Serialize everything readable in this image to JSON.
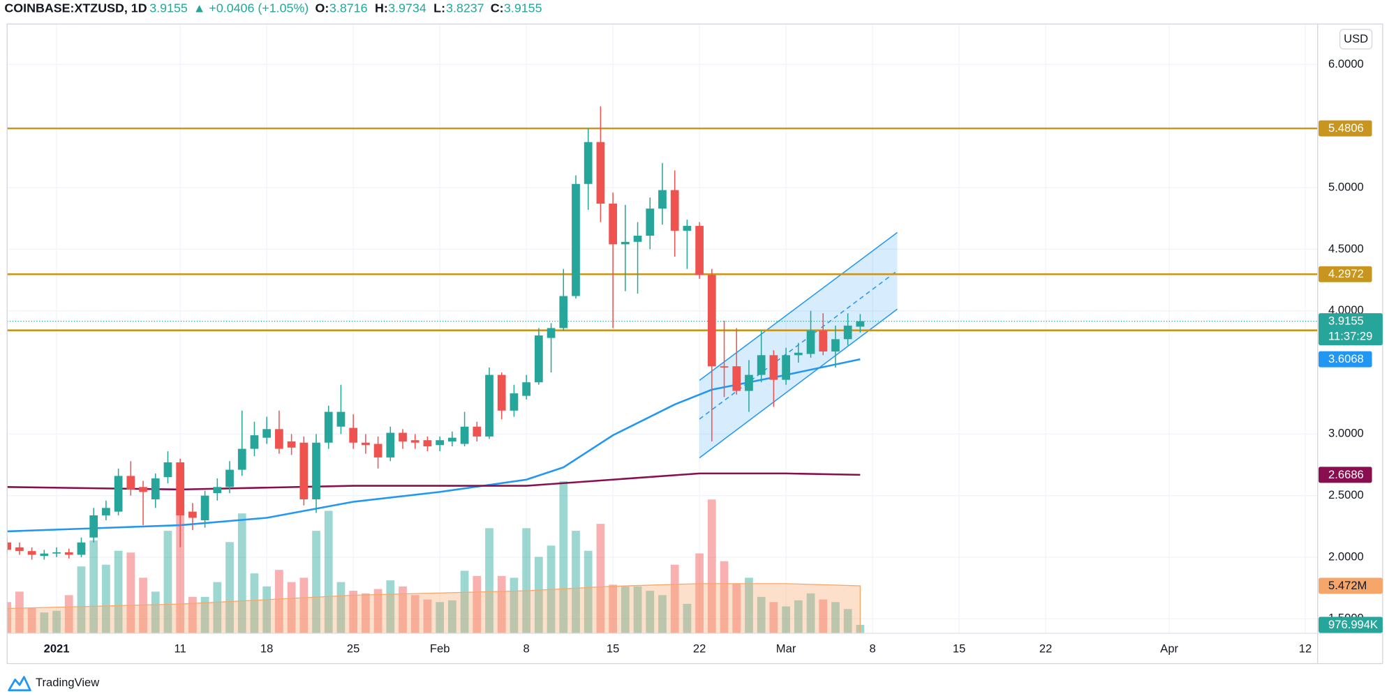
{
  "chart_data": {
    "type": "candlestick",
    "title": "COINBASE:XTZUSD, 1D",
    "change": "▲ +0.0406 (+1.05%)",
    "ohlc_labels": {
      "open": "O:",
      "high": "H:",
      "low": "L:",
      "close": "C:"
    },
    "currency": "USD",
    "countdown": "11:37:29",
    "brand": "TradingView",
    "up_color": "#26a69a",
    "down_color": "#ef5350",
    "grid": true,
    "x": [
      "2020-12-28",
      "2020-12-29",
      "2020-12-30",
      "2020-12-31",
      "2021-01-01",
      "2021-01-02",
      "2021-01-03",
      "2021-01-04",
      "2021-01-05",
      "2021-01-06",
      "2021-01-07",
      "2021-01-08",
      "2021-01-09",
      "2021-01-10",
      "2021-01-11",
      "2021-01-12",
      "2021-01-13",
      "2021-01-14",
      "2021-01-15",
      "2021-01-16",
      "2021-01-17",
      "2021-01-18",
      "2021-01-19",
      "2021-01-20",
      "2021-01-21",
      "2021-01-22",
      "2021-01-23",
      "2021-01-24",
      "2021-01-25",
      "2021-01-26",
      "2021-01-27",
      "2021-01-28",
      "2021-01-29",
      "2021-01-30",
      "2021-01-31",
      "2021-02-01",
      "2021-02-02",
      "2021-02-03",
      "2021-02-04",
      "2021-02-05",
      "2021-02-06",
      "2021-02-07",
      "2021-02-08",
      "2021-02-09",
      "2021-02-10",
      "2021-02-11",
      "2021-02-12",
      "2021-02-13",
      "2021-02-14",
      "2021-02-15",
      "2021-02-16",
      "2021-02-17",
      "2021-02-18",
      "2021-02-19",
      "2021-02-20",
      "2021-02-21",
      "2021-02-22",
      "2021-02-23",
      "2021-02-24",
      "2021-02-25",
      "2021-02-26",
      "2021-02-27",
      "2021-02-28",
      "2021-03-01",
      "2021-03-02",
      "2021-03-03",
      "2021-03-04",
      "2021-03-05",
      "2021-03-06",
      "2021-03-07"
    ],
    "open": [
      2.12,
      2.08,
      2.05,
      2.01,
      2.03,
      2.04,
      2.02,
      2.16,
      2.34,
      2.37,
      2.66,
      2.57,
      2.47,
      2.65,
      2.77,
      2.37,
      2.3,
      2.52,
      2.57,
      2.71,
      2.88,
      2.97,
      3.04,
      2.94,
      2.93,
      2.47,
      2.93,
      3.06,
      3.05,
      2.93,
      2.92,
      2.81,
      3.01,
      2.95,
      2.95,
      2.91,
      2.94,
      2.92,
      3.06,
      2.98,
      3.48,
      3.19,
      3.31,
      3.42,
      3.78,
      3.86,
      4.12,
      5.03,
      5.37,
      4.87,
      4.54,
      4.56,
      4.61,
      4.83,
      4.98,
      4.65,
      4.69,
      4.29,
      3.55,
      3.55,
      3.35,
      3.48,
      3.64,
      3.44,
      3.64,
      3.65,
      3.84,
      3.67,
      3.77,
      3.8716
    ],
    "high": [
      2.16,
      2.12,
      2.08,
      2.06,
      2.08,
      2.07,
      2.16,
      2.4,
      2.46,
      2.72,
      2.78,
      2.62,
      2.68,
      2.86,
      2.8,
      2.44,
      2.54,
      2.64,
      2.78,
      3.19,
      3.1,
      3.14,
      3.19,
      3.0,
      2.98,
      3.0,
      3.23,
      3.4,
      3.16,
      3.0,
      2.98,
      3.06,
      3.04,
      3.0,
      2.98,
      2.98,
      3.02,
      3.18,
      3.1,
      3.54,
      3.5,
      3.4,
      3.48,
      3.86,
      3.9,
      4.34,
      5.1,
      5.48,
      5.66,
      4.96,
      4.86,
      4.72,
      4.92,
      5.2,
      5.14,
      4.74,
      4.72,
      4.34,
      3.92,
      3.86,
      3.6,
      3.84,
      3.68,
      3.7,
      3.74,
      4.0,
      3.98,
      3.88,
      3.98,
      3.9734
    ],
    "low": [
      2.03,
      2.02,
      1.98,
      1.98,
      2.0,
      1.99,
      2.0,
      2.12,
      2.3,
      2.34,
      2.5,
      2.26,
      2.4,
      2.6,
      2.08,
      2.22,
      2.24,
      2.46,
      2.52,
      2.66,
      2.82,
      2.92,
      2.84,
      2.83,
      2.42,
      2.36,
      2.88,
      3.0,
      2.88,
      2.84,
      2.72,
      2.78,
      2.88,
      2.88,
      2.86,
      2.86,
      2.9,
      2.9,
      2.94,
      2.96,
      3.12,
      3.14,
      3.28,
      3.4,
      3.5,
      3.84,
      4.1,
      4.82,
      4.72,
      3.86,
      4.16,
      4.14,
      4.5,
      4.7,
      4.44,
      4.34,
      4.26,
      2.94,
      3.3,
      3.32,
      3.18,
      3.42,
      3.22,
      3.4,
      3.58,
      3.62,
      3.64,
      3.54,
      3.72,
      3.8237
    ],
    "close": [
      2.06,
      2.05,
      2.02,
      2.03,
      2.04,
      2.02,
      2.12,
      2.34,
      2.4,
      2.66,
      2.55,
      2.53,
      2.64,
      2.77,
      2.34,
      2.32,
      2.5,
      2.57,
      2.71,
      2.88,
      2.99,
      3.04,
      2.88,
      2.89,
      2.47,
      2.93,
      3.18,
      3.18,
      2.93,
      2.91,
      2.81,
      3.01,
      2.94,
      2.93,
      2.9,
      2.95,
      2.97,
      3.06,
      2.98,
      3.48,
      3.19,
      3.33,
      3.42,
      3.8,
      3.86,
      4.12,
      5.03,
      5.37,
      4.87,
      4.54,
      4.56,
      4.61,
      4.83,
      4.98,
      4.65,
      4.69,
      4.29,
      3.55,
      3.54,
      3.35,
      3.48,
      3.64,
      3.44,
      3.64,
      3.66,
      3.84,
      3.67,
      3.77,
      3.88,
      3.9155
    ],
    "volume": {
      "up_color": "rgba(38,166,154,0.45)",
      "down_color": "rgba(239,83,80,0.45)",
      "values": [
        3600000,
        4800000,
        2900000,
        2400000,
        2600000,
        4400000,
        7700000,
        10700000,
        7900000,
        9500000,
        9300000,
        6400000,
        4800000,
        11800000,
        17700000,
        4200000,
        4200000,
        5900000,
        10500000,
        13800000,
        6900000,
        5400000,
        7300000,
        5900000,
        6400000,
        11800000,
        14100000,
        5900000,
        4900000,
        4600000,
        5100000,
        6100000,
        5400000,
        4400000,
        3900000,
        3600000,
        3800000,
        7200000,
        6600000,
        12100000,
        6600000,
        6400000,
        12100000,
        8800000,
        10100000,
        17500000,
        11800000,
        9500000,
        12600000,
        5600000,
        5400000,
        5400000,
        4900000,
        4400000,
        7900000,
        3400000,
        9200000,
        15400000,
        8300000,
        5700000,
        6400000,
        4200000,
        3600000,
        3100000,
        3800000,
        4600000,
        3900000,
        3600000,
        2800000,
        976994
      ],
      "value_labels": [
        null,
        null,
        null,
        null,
        null,
        null,
        null,
        null,
        null,
        null,
        null,
        null,
        null,
        null,
        null,
        null,
        null,
        null,
        null,
        null,
        null,
        null,
        null,
        null,
        null,
        null,
        null,
        null,
        null,
        null,
        null,
        null,
        null,
        null,
        null,
        null,
        null,
        null,
        null,
        null,
        null,
        null,
        null,
        null,
        null,
        null,
        null,
        null,
        null,
        null,
        null,
        null,
        null,
        null,
        null,
        null,
        null,
        null,
        null,
        null,
        null,
        null,
        null,
        null,
        null,
        null,
        null,
        null,
        null,
        "976.994K"
      ]
    },
    "volume_ma": {
      "color": "#f7a66a",
      "x": [
        "2020-12-28",
        "2021-01-11",
        "2021-01-25",
        "2021-02-08",
        "2021-02-15",
        "2021-02-22",
        "2021-03-01",
        "2021-03-07"
      ],
      "values": [
        2860000,
        3370000,
        4390000,
        4900000,
        5420000,
        5720000,
        5720000,
        5472000
      ],
      "value_labels": [
        null,
        null,
        null,
        null,
        null,
        null,
        null,
        "5.472M"
      ]
    },
    "moving_averages": [
      {
        "color": "#2196f3",
        "x": [
          "2020-12-28",
          "2021-01-11",
          "2021-01-18",
          "2021-01-25",
          "2021-02-01",
          "2021-02-08",
          "2021-02-11",
          "2021-02-15",
          "2021-02-20",
          "2021-02-23",
          "2021-03-01",
          "2021-03-07"
        ],
        "values": [
          2.21,
          2.26,
          2.32,
          2.45,
          2.53,
          2.63,
          2.73,
          2.99,
          3.24,
          3.36,
          3.48,
          3.6068
        ]
      },
      {
        "color": "#880e4f",
        "x": [
          "2020-12-28",
          "2021-01-11",
          "2021-01-25",
          "2021-02-08",
          "2021-02-15",
          "2021-02-22",
          "2021-03-01",
          "2021-03-07"
        ],
        "values": [
          2.57,
          2.55,
          2.58,
          2.58,
          2.63,
          2.68,
          2.68,
          2.6686
        ]
      }
    ],
    "levels": [
      {
        "value": 5.4806,
        "color": "#c8961e"
      },
      {
        "value": 4.2972,
        "color": "#c8961e"
      },
      {
        "value": 3.8416,
        "color": "#c8961e"
      }
    ],
    "channel": {
      "color": "#2196f3",
      "x": [
        "2021-02-22",
        "2021-03-10"
      ],
      "lower": [
        2.807,
        4.014
      ],
      "upper": [
        3.436,
        4.636
      ]
    },
    "xlim": [
      "2020-12-28",
      "2021-04-13"
    ],
    "ylim": [
      1.382,
      6.328
    ],
    "volume_ylim": [
      0,
      70100000
    ],
    "xticks": [
      {
        "value": "2021-01-01",
        "label": "2021"
      },
      {
        "value": "2021-01-11",
        "label": "11"
      },
      {
        "value": "2021-01-18",
        "label": "18"
      },
      {
        "value": "2021-01-25",
        "label": "25"
      },
      {
        "value": "2021-02-01",
        "label": "Feb"
      },
      {
        "value": "2021-02-08",
        "label": "8"
      },
      {
        "value": "2021-02-15",
        "label": "15"
      },
      {
        "value": "2021-02-22",
        "label": "22"
      },
      {
        "value": "2021-03-01",
        "label": "Mar"
      },
      {
        "value": "2021-03-08",
        "label": "8"
      },
      {
        "value": "2021-03-15",
        "label": "15"
      },
      {
        "value": "2021-03-22",
        "label": "22"
      },
      {
        "value": "2021-04-01",
        "label": "Apr"
      },
      {
        "value": "2021-04-12",
        "label": "12"
      }
    ],
    "yticks": [
      {
        "value": 1.5,
        "label": "1.5000"
      },
      {
        "value": 2,
        "label": "2.0000"
      },
      {
        "value": 2.5,
        "label": "2.5000"
      },
      {
        "value": 3,
        "label": "3.0000"
      },
      {
        "value": 4,
        "label": "4.0000"
      },
      {
        "value": 4.5,
        "label": "4.5000"
      },
      {
        "value": 5,
        "label": "5.0000"
      },
      {
        "value": 6,
        "label": "6.0000"
      }
    ]
  }
}
